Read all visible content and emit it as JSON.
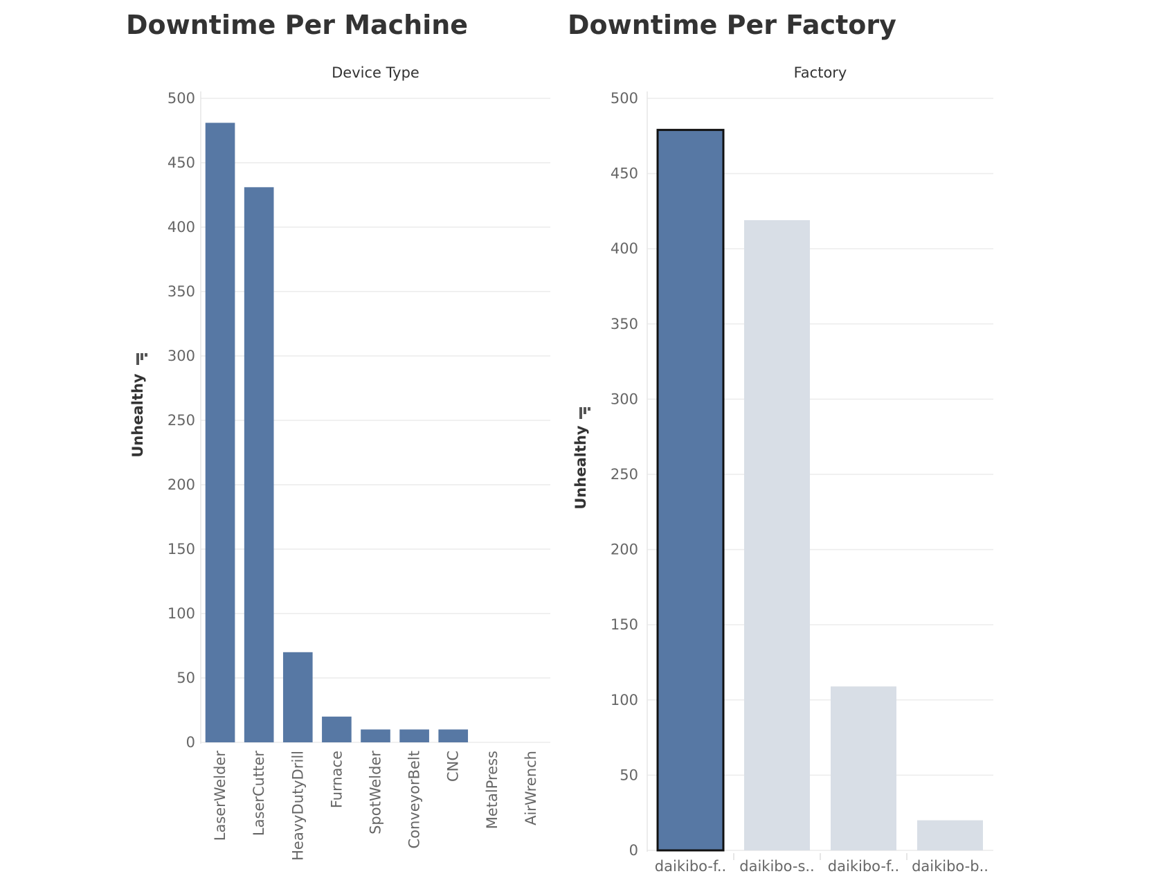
{
  "chart_data": [
    {
      "type": "bar",
      "title": "Downtime Per Machine",
      "column_header": "Device Type",
      "ylabel": "Unhealthy",
      "sort_icon": "sort-descending-icon",
      "ylim": [
        0,
        500
      ],
      "yticks": [
        0,
        50,
        100,
        150,
        200,
        250,
        300,
        350,
        400,
        450,
        500
      ],
      "categories": [
        "LaserWelder",
        "LaserCutter",
        "HeavyDutyDrill",
        "Furnace",
        "SpotWelder",
        "ConveyorBelt",
        "CNC",
        "MetalPress",
        "AirWrench"
      ],
      "values": [
        481,
        431,
        70,
        20,
        10,
        10,
        10,
        0,
        0
      ],
      "bar_color": "#5778a4",
      "grid": true
    },
    {
      "type": "bar",
      "title": "Downtime Per Factory",
      "column_header": "Factory",
      "ylabel": "Unhealthy",
      "sort_icon": "sort-descending-icon",
      "ylim": [
        0,
        500
      ],
      "yticks": [
        0,
        50,
        100,
        150,
        200,
        250,
        300,
        350,
        400,
        450,
        500
      ],
      "categories": [
        "daikibo-f..",
        "daikibo-s..",
        "daikibo-f..",
        "daikibo-b.."
      ],
      "values": [
        479,
        419,
        109,
        20
      ],
      "selected_index": 0,
      "bar_color": "#5778a4",
      "dimmed_color": "#d8dee6",
      "grid": true
    }
  ]
}
